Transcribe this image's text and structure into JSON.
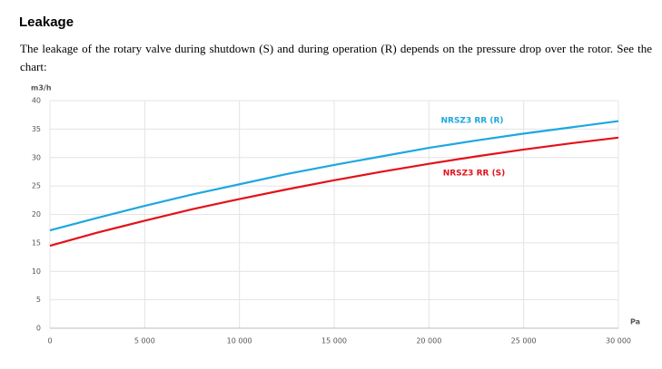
{
  "header": {
    "title": "Leakage"
  },
  "paragraph": "The leakage of the rotary valve during shutdown (S) and during operation (R) depends on the pressure drop over the rotor. See the chart:",
  "chart_data": {
    "type": "line",
    "y_label": "m3/h",
    "x_label": "Pa",
    "x": [
      0,
      2500,
      5000,
      7500,
      10000,
      12500,
      15000,
      17500,
      20000,
      22500,
      25000,
      27500,
      30000
    ],
    "series": [
      {
        "name": "NRSZ3 RR (R)",
        "color": "#1ea7df",
        "values": [
          17.2,
          19.4,
          21.5,
          23.5,
          25.3,
          27.1,
          28.7,
          30.2,
          31.7,
          33.0,
          34.2,
          35.3,
          36.4
        ]
      },
      {
        "name": "NRSZ3 RR (S)",
        "color": "#e3111b",
        "values": [
          14.5,
          16.8,
          18.9,
          20.9,
          22.7,
          24.4,
          26.0,
          27.5,
          28.9,
          30.2,
          31.4,
          32.5,
          33.5
        ]
      }
    ],
    "xlim": [
      0,
      30000
    ],
    "xticks": [
      0,
      {
        "value": 5000,
        "label": "5 000"
      },
      {
        "value": 10000,
        "label": "10 000"
      },
      {
        "value": 15000,
        "label": "15 000"
      },
      {
        "value": 20000,
        "label": "20 000"
      },
      {
        "value": 25000,
        "label": "25 000"
      },
      {
        "value": 30000,
        "label": "30 000"
      }
    ],
    "ylim": [
      0,
      40
    ],
    "yticks": [
      0,
      5,
      10,
      15,
      20,
      25,
      30,
      35,
      40
    ],
    "grid": true
  }
}
